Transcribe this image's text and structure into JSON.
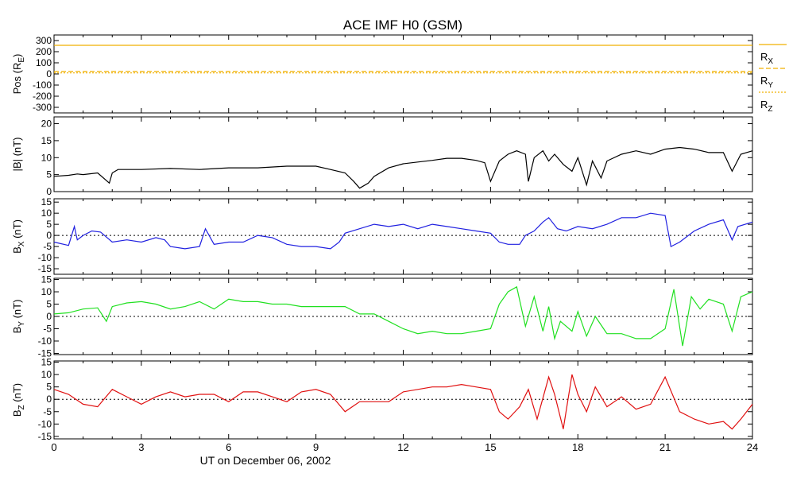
{
  "title": "ACE IMF H0 (GSM)",
  "xlabel": "UT on December 06, 2002",
  "x_ticks": [
    "0",
    "3",
    "6",
    "9",
    "12",
    "15",
    "18",
    "21",
    "24"
  ],
  "colors": {
    "bx": "#2020e0",
    "by": "#20e020",
    "bz": "#e01010",
    "b": "#000000",
    "pos": "#f0b000"
  },
  "chart_data": [
    {
      "type": "line",
      "id": "pos",
      "ylabel": "Pos (R",
      "ylabel_sub": "E",
      "ylabel_tail": ")",
      "ylim": [
        -350,
        350
      ],
      "yticks": [
        "300",
        "200",
        "100",
        "0",
        "-100",
        "-200",
        "-300"
      ],
      "ytick_values": [
        300,
        200,
        100,
        0,
        -100,
        -200,
        -300
      ],
      "legend": [
        {
          "label": "R",
          "sub": "X"
        },
        {
          "label": "R",
          "sub": "Y"
        },
        {
          "label": "R",
          "sub": "Z"
        }
      ],
      "series": [
        {
          "name": "RX",
          "x": [
            0,
            24
          ],
          "values": [
            257,
            257
          ]
        },
        {
          "name": "RY",
          "x": [
            0,
            24
          ],
          "values": [
            22,
            22
          ]
        },
        {
          "name": "RZ",
          "x": [
            0,
            24
          ],
          "values": [
            9,
            9
          ]
        }
      ]
    },
    {
      "type": "line",
      "id": "b",
      "ylabel": "|B| (nT)",
      "ylim": [
        0,
        22
      ],
      "yticks": [
        "20",
        "15",
        "10",
        "5",
        "0"
      ],
      "ytick_values": [
        20,
        15,
        10,
        5,
        0
      ],
      "series": [
        {
          "name": "|B|",
          "x": [
            0,
            0.5,
            0.8,
            1,
            1.5,
            1.9,
            2,
            2.2,
            3,
            4,
            5,
            6,
            7,
            8,
            9,
            9.5,
            10,
            10.3,
            10.5,
            10.8,
            11,
            11.5,
            12,
            12.5,
            13,
            13.5,
            14,
            14.5,
            14.8,
            15,
            15.3,
            15.6,
            15.9,
            16.2,
            16.3,
            16.5,
            16.8,
            17,
            17.2,
            17.5,
            17.8,
            18,
            18.3,
            18.5,
            18.8,
            19,
            19.5,
            20,
            20.5,
            21,
            21.5,
            22,
            22.5,
            23,
            23.3,
            23.6,
            24
          ],
          "values": [
            4.5,
            4.8,
            5.2,
            5,
            5.5,
            2.5,
            5.5,
            6.5,
            6.5,
            6.8,
            6.5,
            7,
            7,
            7.5,
            7.5,
            6.5,
            5.5,
            3,
            1,
            2.5,
            4.5,
            7,
            8.2,
            8.7,
            9.2,
            9.8,
            9.8,
            9.2,
            8.5,
            3,
            9,
            11,
            12,
            11,
            3,
            10,
            12,
            9,
            11,
            8,
            6,
            10,
            2,
            9,
            4,
            9,
            11,
            12,
            11,
            12.5,
            13,
            12.5,
            11.5,
            11.5,
            6,
            11,
            12
          ]
        }
      ]
    },
    {
      "type": "line",
      "id": "bx",
      "ylabel": "B",
      "ylabel_sub": "X",
      "ylabel_tail": " (nT)",
      "ylim": [
        -17.5,
        16.5
      ],
      "yticks": [
        "15",
        "10",
        "5",
        "0",
        "-5",
        "-10",
        "-15"
      ],
      "ytick_values": [
        15,
        10,
        5,
        0,
        -5,
        -10,
        -15
      ],
      "zero_line": true,
      "series": [
        {
          "name": "BX",
          "x": [
            0,
            0.5,
            0.7,
            0.8,
            1,
            1.3,
            1.6,
            2,
            2.5,
            3,
            3.5,
            3.8,
            4,
            4.5,
            5,
            5.2,
            5.5,
            6,
            6.5,
            7,
            7.5,
            8,
            8.5,
            9,
            9.5,
            9.8,
            10,
            10.5,
            11,
            11.5,
            12,
            12.5,
            13,
            13.5,
            14,
            14.5,
            15,
            15.3,
            15.6,
            16,
            16.2,
            16.5,
            16.8,
            17,
            17.3,
            17.6,
            18,
            18.5,
            19,
            19.5,
            20,
            20.5,
            21,
            21.2,
            21.5,
            22,
            22.5,
            23,
            23.3,
            23.5,
            24
          ],
          "values": [
            -3,
            -4.5,
            4,
            -2,
            0,
            2,
            1.5,
            -3,
            -2,
            -3,
            -1,
            -2,
            -5,
            -6,
            -5,
            3,
            -4,
            -3,
            -3,
            0,
            -1,
            -4,
            -5,
            -5,
            -6,
            -3,
            1,
            3,
            5,
            4,
            5,
            3,
            5,
            4,
            3,
            2,
            1,
            -3,
            -4,
            -4,
            0,
            2,
            6,
            8,
            3,
            2,
            4,
            3,
            5,
            8,
            8,
            10,
            9,
            -5,
            -3,
            2,
            5,
            7,
            -2,
            4,
            6
          ]
        }
      ]
    },
    {
      "type": "line",
      "id": "by",
      "ylabel": "B",
      "ylabel_sub": "Y",
      "ylabel_tail": " (nT)",
      "ylim": [
        -15.5,
        15.5
      ],
      "yticks": [
        "15",
        "10",
        "5",
        "0",
        "-5",
        "-10",
        "-15"
      ],
      "ytick_values": [
        15,
        10,
        5,
        0,
        -5,
        -10,
        -15
      ],
      "zero_line": true,
      "series": [
        {
          "name": "BY",
          "x": [
            0,
            0.5,
            1,
            1.5,
            1.8,
            2,
            2.5,
            3,
            3.5,
            4,
            4.5,
            5,
            5.5,
            6,
            6.5,
            7,
            7.5,
            8,
            8.5,
            9,
            9.5,
            10,
            10.5,
            11,
            11.5,
            12,
            12.5,
            13,
            13.5,
            14,
            14.5,
            15,
            15.3,
            15.6,
            15.9,
            16.2,
            16.5,
            16.8,
            17,
            17.2,
            17.4,
            17.8,
            18,
            18.3,
            18.6,
            19,
            19.5,
            20,
            20.5,
            21,
            21.3,
            21.6,
            21.9,
            22.2,
            22.5,
            23,
            23.3,
            23.6,
            24
          ],
          "values": [
            1,
            1.5,
            3,
            3.5,
            -2,
            4,
            5.5,
            6,
            5,
            3,
            4,
            6,
            3,
            7,
            6,
            6,
            5,
            5,
            4,
            4,
            4,
            4,
            1,
            1,
            -2,
            -5,
            -7,
            -6,
            -7,
            -7,
            -6,
            -5,
            5,
            10,
            12,
            -4,
            8,
            -6,
            4,
            -9,
            -2,
            -6,
            2,
            -8,
            0,
            -7,
            -7,
            -9,
            -9,
            -5,
            11,
            -12,
            8,
            3,
            7,
            5,
            -6,
            8,
            10
          ]
        }
      ]
    },
    {
      "type": "line",
      "id": "bz",
      "ylabel": "B",
      "ylabel_sub": "Z",
      "ylabel_tail": " (nT)",
      "ylim": [
        -16,
        15.5
      ],
      "yticks": [
        "15",
        "10",
        "5",
        "0",
        "-5",
        "-10",
        "-15"
      ],
      "ytick_values": [
        15,
        10,
        5,
        0,
        -5,
        -10,
        -15
      ],
      "zero_line": true,
      "series": [
        {
          "name": "BZ",
          "x": [
            0,
            0.5,
            1,
            1.5,
            2,
            2.5,
            3,
            3.5,
            4,
            4.5,
            5,
            5.5,
            6,
            6.5,
            7,
            7.5,
            8,
            8.5,
            9,
            9.5,
            10,
            10.5,
            11,
            11.5,
            12,
            12.5,
            13,
            13.5,
            14,
            14.5,
            15,
            15.3,
            15.6,
            16,
            16.3,
            16.6,
            17,
            17.2,
            17.5,
            17.8,
            18,
            18.3,
            18.6,
            19,
            19.5,
            20,
            20.5,
            21,
            21.5,
            22,
            22.5,
            23,
            23.3,
            23.6,
            24
          ],
          "values": [
            4,
            2,
            -2,
            -3,
            4,
            1,
            -2,
            1,
            3,
            1,
            2,
            2,
            -1,
            3,
            3,
            1,
            -1,
            3,
            4,
            2,
            -5,
            -1,
            -1,
            -1,
            3,
            4,
            5,
            5,
            6,
            5,
            4,
            -5,
            -8,
            -3,
            4,
            -8,
            9,
            2,
            -12,
            10,
            2,
            -5,
            5,
            -3,
            1,
            -4,
            -2,
            9,
            -5,
            -8,
            -10,
            -9,
            -12,
            -8,
            -2
          ]
        }
      ]
    }
  ]
}
